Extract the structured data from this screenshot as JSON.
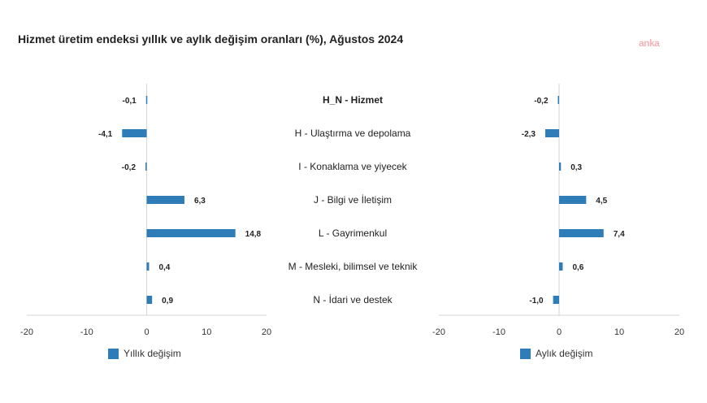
{
  "title": "Hizmet üretim endeksi yıllık ve aylık değişim oranları (%), Ağustos 2024",
  "watermark": "anka",
  "colors": {
    "bar": "#2e7cb8",
    "axis": "#d6d6d6"
  },
  "chart_data": [
    {
      "type": "bar",
      "orientation": "horizontal",
      "categories": [
        "H_N - Hizmet",
        "H - Ulaştırma ve depolama",
        "I - Konaklama ve yiyecek",
        "J - Bilgi ve İletişim",
        "L - Gayrimenkul",
        "M - Mesleki, bilimsel ve teknik",
        "N - İdari ve destek"
      ],
      "series": [
        {
          "name": "Yıllık değişim",
          "values": [
            -0.1,
            -4.1,
            -0.2,
            6.3,
            14.8,
            0.4,
            0.9
          ],
          "labels": [
            "-0,1",
            "-4,1",
            "-0,2",
            "6,3",
            "14,8",
            "0,4",
            "0,9"
          ]
        }
      ],
      "xlim": [
        -20,
        20
      ],
      "xticks": [
        -20,
        -10,
        0,
        10,
        20
      ],
      "legend": "bottom"
    },
    {
      "type": "bar",
      "orientation": "horizontal",
      "categories": [
        "H_N - Hizmet",
        "H - Ulaştırma ve depolama",
        "I - Konaklama ve yiyecek",
        "J - Bilgi ve İletişim",
        "L - Gayrimenkul",
        "M - Mesleki, bilimsel ve teknik",
        "N - İdari ve destek"
      ],
      "series": [
        {
          "name": "Aylık değişim",
          "values": [
            -0.2,
            -2.3,
            0.3,
            4.5,
            7.4,
            0.6,
            -1.0
          ],
          "labels": [
            "-0,2",
            "-2,3",
            "0,3",
            "4,5",
            "7,4",
            "0,6",
            "-1,0"
          ]
        }
      ],
      "xlim": [
        -20,
        20
      ],
      "xticks": [
        -20,
        -10,
        0,
        10,
        20
      ],
      "legend": "bottom"
    }
  ]
}
